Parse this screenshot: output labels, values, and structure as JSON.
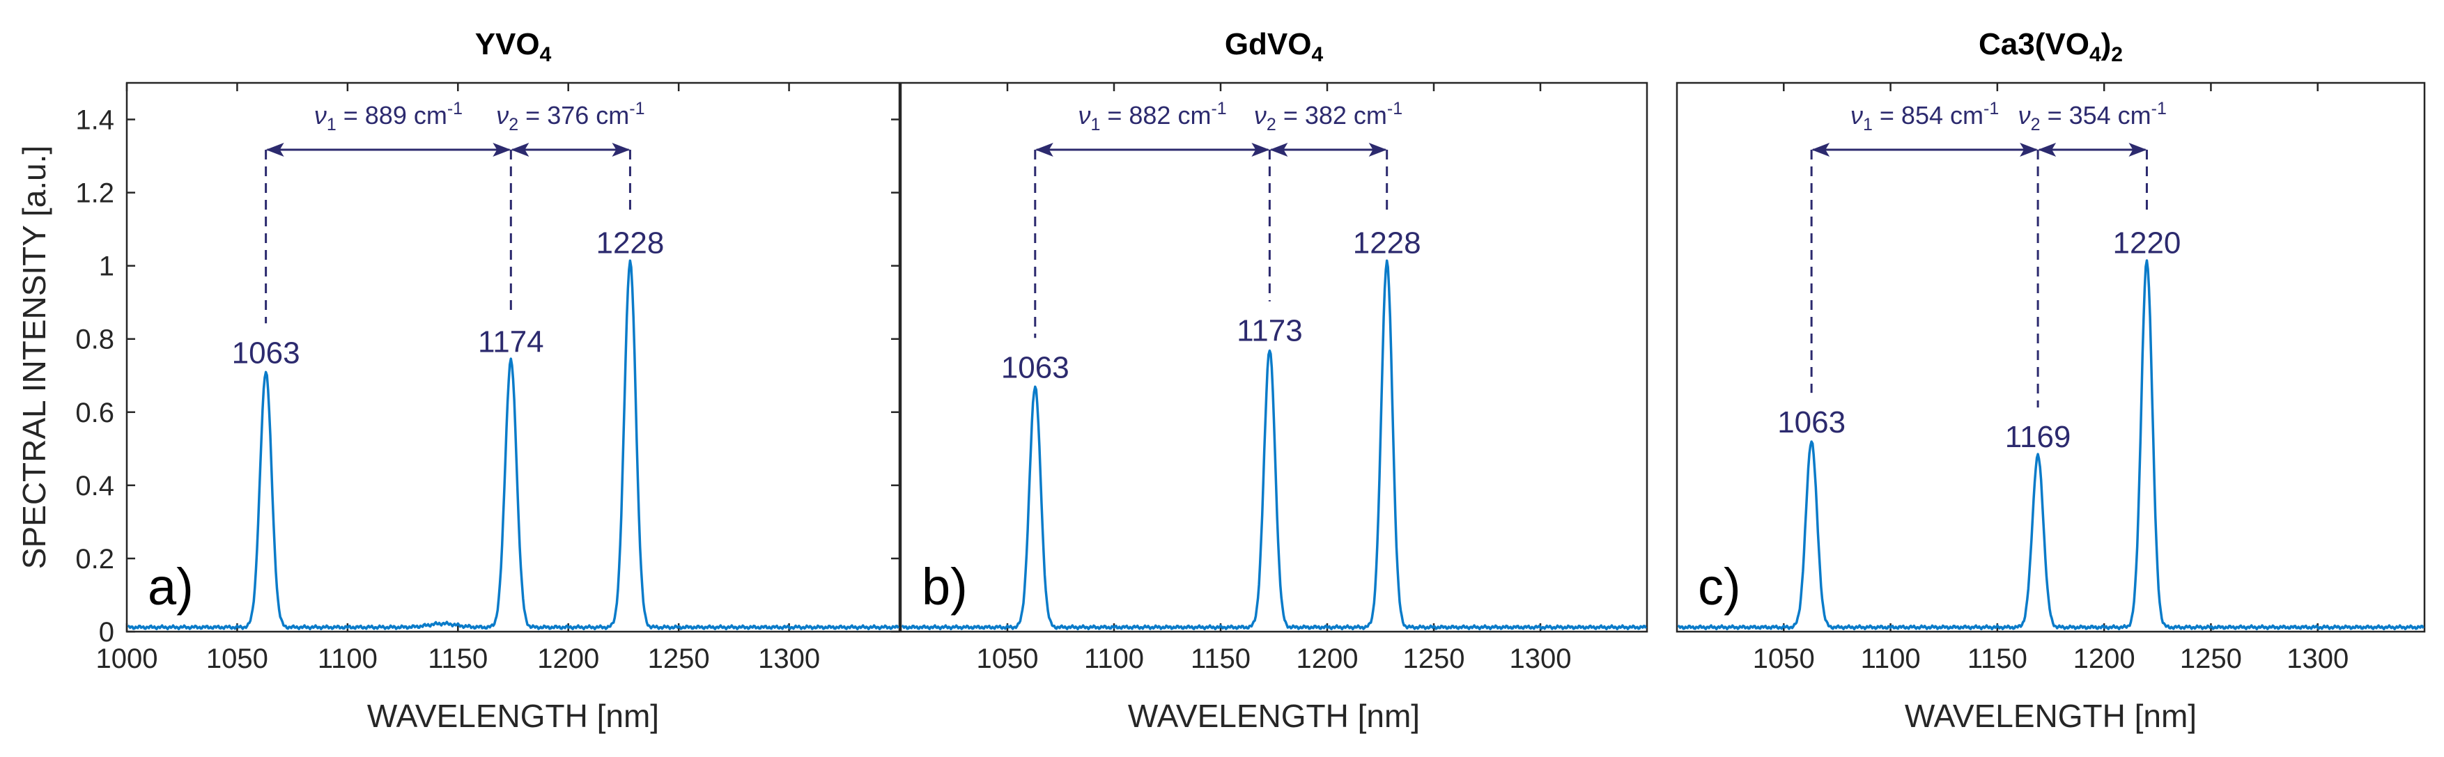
{
  "figure": {
    "annotation_color": "#2c2a6e",
    "series_color": "#0a7bc9",
    "axis_color": "#262626"
  },
  "chart_data": [
    {
      "id": "a",
      "type": "line",
      "title": {
        "main": "YVO",
        "sub": "4",
        "tail": ""
      },
      "panel_label": "a)",
      "xlabel": "WAVELENGTH [nm]",
      "ylabel": "SPECTRAL INTENSITY [a.u.]",
      "xlim": [
        1000,
        1350
      ],
      "ylim": [
        0,
        1.5
      ],
      "xticks": [
        1000,
        1050,
        1100,
        1150,
        1200,
        1250,
        1300
      ],
      "xtick_labels": [
        "1000",
        "1050",
        "1100",
        "1150",
        "1200",
        "1250",
        "1300"
      ],
      "yticks": [
        0,
        0.2,
        0.4,
        0.6,
        0.8,
        1.0,
        1.2,
        1.4
      ],
      "ytick_labels": [
        "0",
        "0.2",
        "0.4",
        "0.6",
        "0.8",
        "1",
        "1.2",
        "1.4"
      ],
      "show_ylabel": true,
      "peaks": [
        {
          "center": 1063,
          "height": 0.7,
          "label": "1063"
        },
        {
          "center": 1174,
          "height": 0.73,
          "label": "1174"
        },
        {
          "center": 1228,
          "height": 1.0,
          "label": "1228"
        }
      ],
      "bumps": [
        {
          "center": 1143,
          "height": 0.01
        }
      ],
      "annotations": [
        {
          "sym": "ν",
          "sub": "1",
          "text": " = 889 cm",
          "sup": "-1",
          "from": 1063,
          "to": 1174
        },
        {
          "sym": "ν",
          "sub": "2",
          "text": " = 376 cm",
          "sup": "-1",
          "from": 1174,
          "to": 1228
        }
      ]
    },
    {
      "id": "b",
      "type": "line",
      "title": {
        "main": "GdVO",
        "sub": "4",
        "tail": ""
      },
      "panel_label": "b)",
      "xlabel": "WAVELENGTH [nm]",
      "ylabel": "",
      "xlim": [
        1000,
        1350
      ],
      "ylim": [
        0,
        1.5
      ],
      "xticks": [
        1050,
        1100,
        1150,
        1200,
        1250,
        1300
      ],
      "xtick_labels": [
        "1050",
        "1100",
        "1150",
        "1200",
        "1250",
        "1300"
      ],
      "yticks": [],
      "ytick_labels": [],
      "show_ylabel": false,
      "peaks": [
        {
          "center": 1063,
          "height": 0.66,
          "label": "1063"
        },
        {
          "center": 1173,
          "height": 0.76,
          "label": "1173"
        },
        {
          "center": 1228,
          "height": 1.0,
          "label": "1228"
        }
      ],
      "bumps": [],
      "annotations": [
        {
          "sym": "ν",
          "sub": "1",
          "text": " = 882 cm",
          "sup": "-1",
          "from": 1063,
          "to": 1173
        },
        {
          "sym": "ν",
          "sub": "2",
          "text": " = 382 cm",
          "sup": "-1",
          "from": 1173,
          "to": 1228
        }
      ]
    },
    {
      "id": "c",
      "type": "line",
      "title": {
        "main": "Ca3(VO",
        "sub": "4",
        "tail": ")",
        "sub2": "2"
      },
      "panel_label": "c)",
      "xlabel": "WAVELENGTH [nm]",
      "ylabel": "",
      "xlim": [
        1000,
        1350
      ],
      "ylim": [
        0,
        1.5
      ],
      "xticks": [
        1050,
        1100,
        1150,
        1200,
        1250,
        1300
      ],
      "xtick_labels": [
        "1050",
        "1100",
        "1150",
        "1200",
        "1250",
        "1300"
      ],
      "yticks": [],
      "ytick_labels": [],
      "show_ylabel": false,
      "peaks": [
        {
          "center": 1063,
          "height": 0.51,
          "label": "1063"
        },
        {
          "center": 1169,
          "height": 0.47,
          "label": "1169"
        },
        {
          "center": 1220,
          "height": 1.0,
          "label": "1220"
        }
      ],
      "bumps": [],
      "annotations": [
        {
          "sym": "ν",
          "sub": "1",
          "text": " = 854 cm",
          "sup": "-1",
          "from": 1063,
          "to": 1169
        },
        {
          "sym": "ν",
          "sub": "2",
          "text": " = 354 cm",
          "sup": "-1",
          "from": 1169,
          "to": 1220
        }
      ]
    }
  ]
}
